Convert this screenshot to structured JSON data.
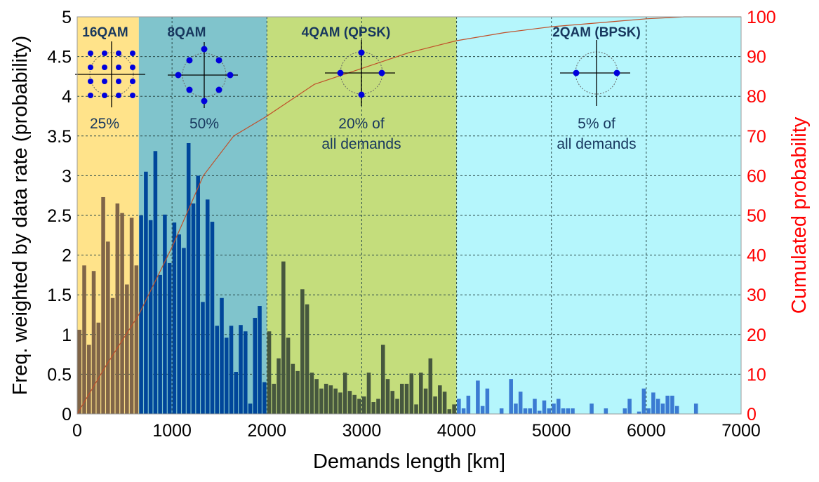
{
  "chart_data": {
    "type": "bar",
    "xlabel": "Demands length [km]",
    "ylabel": "Freq. weighted by data rate (probability)",
    "y2label": "Cumulated probability",
    "xlim": [
      0,
      7000
    ],
    "ylim": [
      0,
      5
    ],
    "y2lim": [
      0,
      100
    ],
    "xticks": [
      "0",
      "1000",
      "2000",
      "3000",
      "4000",
      "5000",
      "6000",
      "7000"
    ],
    "yticks": [
      "0",
      "0.5",
      "1",
      "1.5",
      "2",
      "2.5",
      "3",
      "3.5",
      "4",
      "4.5",
      "5"
    ],
    "y2ticks": [
      "0",
      "10",
      "20",
      "30",
      "40",
      "50",
      "60",
      "70",
      "80",
      "90",
      "100"
    ],
    "grid": true,
    "bin_width_km": 50,
    "regions": [
      {
        "title": "16QAM",
        "from": 0,
        "to": 650,
        "share": "25%",
        "share_line2": "",
        "points": 16,
        "bg": "#ffe38a",
        "bar": "#806548"
      },
      {
        "title": "8QAM",
        "from": 650,
        "to": 2000,
        "share": "50%",
        "share_line2": "",
        "points": 8,
        "bg": "#80c4cc",
        "bar": "#00469a"
      },
      {
        "title": "4QAM (QPSK)",
        "from": 2000,
        "to": 4000,
        "share": "20% of",
        "share_line2": "all demands",
        "points": 4,
        "bg": "#c4dd7c",
        "bar": "#46573e"
      },
      {
        "title": "2QAM (BPSK)",
        "from": 4000,
        "to": 7000,
        "share": "5% of",
        "share_line2": "all demands",
        "points": 2,
        "bg": "#b5f6fc",
        "bar": "#3b7bd2"
      }
    ],
    "series": [
      {
        "region": 0,
        "start": 0,
        "values": [
          1.06,
          1.87,
          0.87,
          1.8,
          1.15,
          2.73,
          2.17,
          1.46,
          2.65,
          2.53,
          1.63,
          2.47,
          1.87
        ]
      },
      {
        "region": 1,
        "start": 650,
        "values": [
          2.5,
          3.05,
          2.44,
          3.31,
          1.75,
          2.51,
          1.9,
          2.41,
          2.26,
          2.09,
          3.41,
          2.65,
          3.0,
          1.41,
          2.7,
          2.42,
          1.11,
          1.46,
          0.96,
          1.11,
          0.53,
          1.12,
          1.04,
          0.13,
          1.21,
          1.36,
          0.4
        ]
      },
      {
        "region": 2,
        "start": 2000,
        "values": [
          1.04,
          0.38,
          0.7,
          1.92,
          0.96,
          0.63,
          0.54,
          1.57,
          1.38,
          0.52,
          0.44,
          0.32,
          0.38,
          0.36,
          0.32,
          0.27,
          0.52,
          0.29,
          0.24,
          0.19,
          0.22,
          0.52,
          0.15,
          0.19,
          0.87,
          0.44,
          0.29,
          0.19,
          0.38,
          0.38,
          0.51,
          0.12,
          0.52,
          0.32,
          0.7,
          0.22,
          0.36,
          0.28,
          0.06,
          0.12
        ]
      },
      {
        "region": 3,
        "start": 4000,
        "values": [
          0.19,
          0.07,
          0.23,
          0,
          0.42,
          0.1,
          0.32,
          0,
          0,
          0.07,
          0,
          0.44,
          0.13,
          0.28,
          0.07,
          0.07,
          0.19,
          0.04,
          0.17,
          0.07,
          0.13,
          0.19,
          0.07,
          0.07,
          0.07,
          0,
          0,
          0,
          0.13,
          0,
          0,
          0.07,
          0,
          0,
          0,
          0.07,
          0.19,
          0,
          0.03,
          0.32,
          0.07,
          0.27,
          0.19,
          0.13,
          0.23,
          0.23,
          0.1,
          0,
          0,
          0,
          0.13
        ]
      }
    ],
    "cumulative": {
      "color": "#c0502a",
      "x": [
        0,
        300,
        650,
        1000,
        1330,
        1650,
        2000,
        2500,
        3000,
        3500,
        4000,
        4500,
        5000,
        5500,
        6000,
        6400,
        7000
      ],
      "y": [
        0,
        12,
        25,
        42,
        60,
        70,
        75,
        83,
        87,
        91,
        94,
        96,
        97.5,
        98.5,
        99.5,
        100,
        100
      ]
    },
    "y2_color": "#ff0000"
  }
}
